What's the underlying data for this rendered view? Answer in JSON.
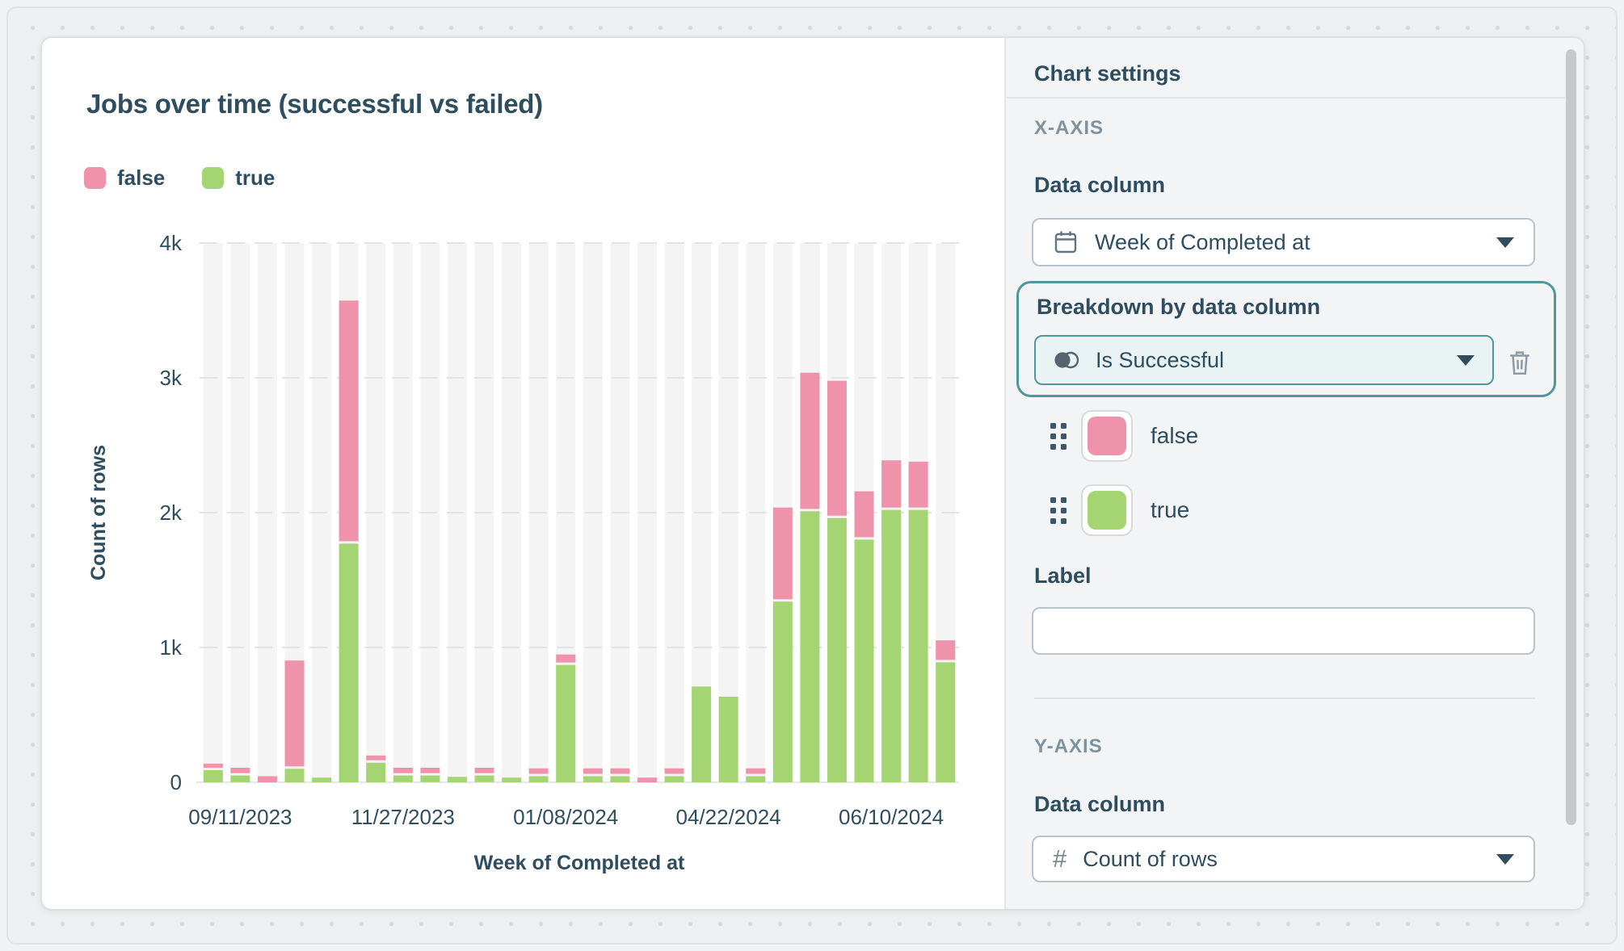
{
  "chart": {
    "title": "Jobs over time (successful vs failed)",
    "legend": [
      {
        "label": "false",
        "color": "#ee93ab"
      },
      {
        "label": "true",
        "color": "#a5d572"
      }
    ]
  },
  "chart_data": {
    "type": "bar",
    "stacked": true,
    "title": "Jobs over time (successful vs failed)",
    "xlabel": "Week of Completed at",
    "ylabel": "Count of rows",
    "ylim": [
      0,
      4000
    ],
    "yticks": [
      0,
      1000,
      2000,
      3000,
      4000
    ],
    "ytick_labels": [
      "0",
      "1k",
      "2k",
      "3k",
      "4k"
    ],
    "categories_count": 28,
    "x_tick_positions": [
      1,
      7,
      13,
      19,
      25
    ],
    "x_tick_labels": [
      "09/11/2023",
      "11/27/2023",
      "01/08/2024",
      "04/22/2024",
      "06/10/2024"
    ],
    "grid": "dashed-horizontal",
    "legend_position": "top-left",
    "series": [
      {
        "name": "true",
        "color": "#a5d572",
        "stack": "bottom",
        "values": [
          90,
          50,
          0,
          100,
          35,
          1770,
          145,
          50,
          50,
          40,
          50,
          35,
          45,
          870,
          45,
          45,
          0,
          45,
          710,
          635,
          45,
          1340,
          2010,
          1960,
          1800,
          2020,
          2020,
          890
        ]
      },
      {
        "name": "false",
        "color": "#ee93ab",
        "stack": "top",
        "values": [
          30,
          40,
          45,
          785,
          0,
          1785,
          35,
          40,
          40,
          0,
          40,
          0,
          40,
          60,
          40,
          40,
          35,
          40,
          0,
          0,
          40,
          680,
          1010,
          1000,
          340,
          350,
          340,
          145
        ]
      }
    ],
    "plot_colors": {
      "slot_background": "#f3f4f3",
      "gridline": "#dfe4e7",
      "baseline": "#e4e7e9"
    }
  },
  "settings": {
    "header": "Chart settings",
    "x_axis": {
      "section_label": "X-AXIS",
      "data_column_label": "Data column",
      "data_column_value": "Week of Completed at",
      "data_column_icon": "calendar-icon",
      "breakdown_label": "Breakdown by data column",
      "breakdown_value": "Is Successful",
      "breakdown_icon": "boolean-icon",
      "series_items": [
        {
          "label": "false",
          "color": "#ee93ab"
        },
        {
          "label": "true",
          "color": "#a5d572"
        }
      ],
      "label_field_label": "Label",
      "label_field_value": ""
    },
    "y_axis": {
      "section_label": "Y-AXIS",
      "data_column_label": "Data column",
      "data_column_value": "Count of rows",
      "data_column_icon": "hash-icon"
    }
  }
}
